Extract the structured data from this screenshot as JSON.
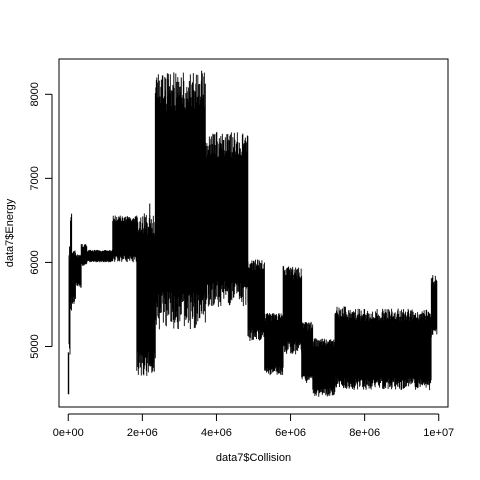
{
  "chart_data": {
    "type": "line",
    "title": "",
    "xlabel": "data7$Collision",
    "ylabel": "data7$Energy",
    "xlim": [
      -250000,
      10250000
    ],
    "ylim": [
      4280,
      8420
    ],
    "x_ticks": [
      0,
      2000000,
      4000000,
      6000000,
      8000000,
      10000000
    ],
    "x_tick_labels": [
      "0e+00",
      "2e+06",
      "4e+06",
      "6e+06",
      "8e+06",
      "1e+07"
    ],
    "y_ticks": [
      5000,
      6000,
      7000,
      8000
    ],
    "y_tick_labels": [
      "5000",
      "6000",
      "7000",
      "8000"
    ],
    "grid": false,
    "legend": "none",
    "series_color": "#000000",
    "segments": [
      {
        "x_start": 0,
        "x_end": 20000,
        "lower": 4380,
        "upper": 5000
      },
      {
        "x_start": 20000,
        "x_end": 60000,
        "lower": 4900,
        "upper": 6200
      },
      {
        "x_start": 60000,
        "x_end": 100000,
        "lower": 5400,
        "upper": 6580
      },
      {
        "x_start": 100000,
        "x_end": 200000,
        "lower": 5500,
        "upper": 6150
      },
      {
        "x_start": 200000,
        "x_end": 350000,
        "lower": 5700,
        "upper": 6100
      },
      {
        "x_start": 350000,
        "x_end": 500000,
        "lower": 5950,
        "upper": 6220
      },
      {
        "x_start": 500000,
        "x_end": 1200000,
        "lower": 6000,
        "upper": 6150
      },
      {
        "x_start": 1200000,
        "x_end": 1850000,
        "lower": 6000,
        "upper": 6560
      },
      {
        "x_start": 1850000,
        "x_end": 2350000,
        "lower": 4640,
        "upper": 6600
      },
      {
        "x_start": 2350000,
        "x_end": 3700000,
        "lower": 5200,
        "upper": 8260
      },
      {
        "x_start": 3700000,
        "x_end": 4850000,
        "lower": 5470,
        "upper": 7560
      },
      {
        "x_start": 4850000,
        "x_end": 5300000,
        "lower": 5050,
        "upper": 6050
      },
      {
        "x_start": 5300000,
        "x_end": 5800000,
        "lower": 4650,
        "upper": 5400
      },
      {
        "x_start": 5800000,
        "x_end": 6300000,
        "lower": 4900,
        "upper": 5960
      },
      {
        "x_start": 6300000,
        "x_end": 6600000,
        "lower": 4550,
        "upper": 5300
      },
      {
        "x_start": 6600000,
        "x_end": 7200000,
        "lower": 4400,
        "upper": 5100
      },
      {
        "x_start": 7200000,
        "x_end": 7500000,
        "lower": 4500,
        "upper": 5480
      },
      {
        "x_start": 7500000,
        "x_end": 9800000,
        "lower": 4480,
        "upper": 5450
      },
      {
        "x_start": 9800000,
        "x_end": 9950000,
        "lower": 5100,
        "upper": 5850
      }
    ],
    "spikes": [
      {
        "x": 90000,
        "y": 6580
      },
      {
        "x": 2450000,
        "y": 7950
      },
      {
        "x": 2700000,
        "y": 8180
      },
      {
        "x": 2850000,
        "y": 8260
      },
      {
        "x": 3050000,
        "y": 8200
      },
      {
        "x": 3250000,
        "y": 8080
      },
      {
        "x": 3600000,
        "y": 8280
      },
      {
        "x": 2200000,
        "y": 6700
      }
    ]
  }
}
